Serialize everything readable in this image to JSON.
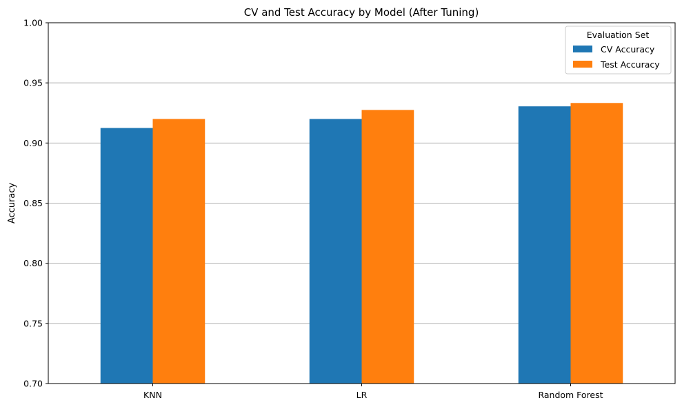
{
  "chart_data": {
    "type": "bar",
    "title": "CV and Test Accuracy by Model (After Tuning)",
    "xlabel": "",
    "ylabel": "Accuracy",
    "ylim": [
      0.7,
      1.0
    ],
    "yticks": [
      "0.70",
      "0.75",
      "0.80",
      "0.85",
      "0.90",
      "0.95",
      "1.00"
    ],
    "categories": [
      "KNN",
      "LR",
      "Random Forest"
    ],
    "series": [
      {
        "name": "CV Accuracy",
        "color": "#1f77b4",
        "values": [
          0.9125,
          0.92,
          0.9305
        ]
      },
      {
        "name": "Test Accuracy",
        "color": "#ff7f0e",
        "values": [
          0.92,
          0.9275,
          0.9333
        ]
      }
    ],
    "grid": "y",
    "legend": {
      "title": "Evaluation Set",
      "position": "top-right"
    }
  }
}
